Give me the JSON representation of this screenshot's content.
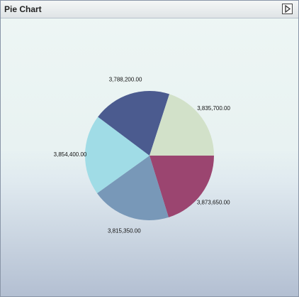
{
  "chart_data": {
    "type": "pie",
    "title": "Pie Chart",
    "categories": [
      null,
      null,
      null,
      null,
      null
    ],
    "values": [
      3873650,
      3815350,
      3854400,
      3788200,
      3835700
    ],
    "value_labels": [
      "3,873,650.00",
      "3,815,350.00",
      "3,854,400.00",
      "3,788,200.00",
      "3,835,700.00"
    ],
    "colors": [
      "#9b4570",
      "#7898b8",
      "#a0dce6",
      "#4b5b8f",
      "#d2e1c9"
    ]
  }
}
